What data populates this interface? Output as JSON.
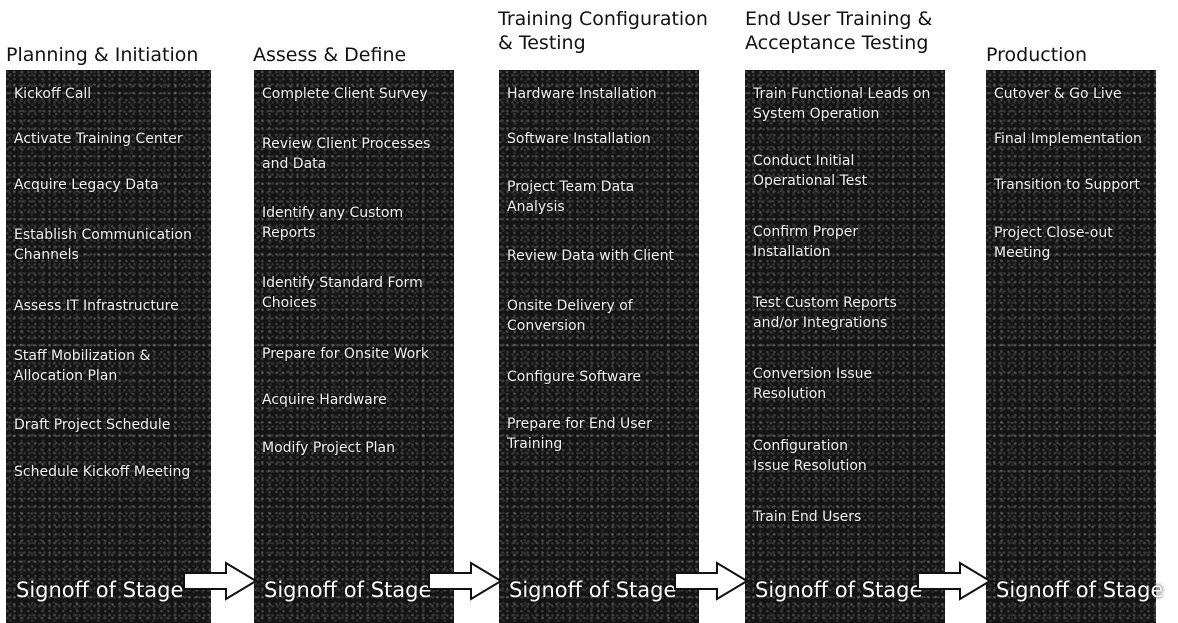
{
  "stages": [
    {
      "title": "Planning & Initiation",
      "tasks": [
        "Kickoff Call",
        "Activate Training Center",
        "Acquire Legacy Data",
        "Establish Communication Channels",
        "Assess IT Infrastructure",
        "Staff Mobilization & Allocation Plan",
        "Draft Project Schedule",
        "Schedule Kickoff Meeting"
      ],
      "signoff": "Signoff of Stage"
    },
    {
      "title": "Assess & Define",
      "tasks": [
        "Complete Client Survey",
        "Review Client Processes and Data",
        "Identify any Custom Reports",
        "Identify Standard Form Choices",
        "Prepare for Onsite Work",
        "Acquire Hardware",
        "Modify Project Plan"
      ],
      "signoff": "Signoff of Stage"
    },
    {
      "title": "Training Configuration\n& Testing",
      "tasks": [
        "Hardware Installation",
        "Software Installation",
        "Project Team Data Analysis",
        "Review Data with Client",
        "Onsite Delivery of Conversion",
        "Configure Software",
        "Prepare for End User Training"
      ],
      "signoff": "Signoff of Stage"
    },
    {
      "title": "End User Training &\nAcceptance Testing",
      "tasks": [
        "Train Functional Leads on System Operation",
        "Conduct Initial Operational Test",
        "Confirm Proper Installation",
        "Test Custom Reports and/or Integrations",
        "Conversion Issue Resolution",
        "Configuration Issue Resolution",
        "Train End Users"
      ],
      "signoff": "Signoff of Stage"
    },
    {
      "title": "Production",
      "tasks": [
        "Cutover & Go Live",
        "Final Implementation",
        "Transition to Support",
        "Project Close-out Meeting"
      ],
      "signoff": "Signoff of Stage"
    }
  ]
}
